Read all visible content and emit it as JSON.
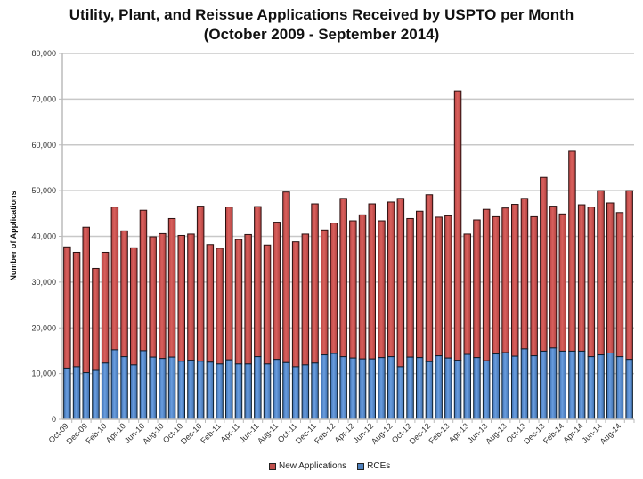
{
  "chart_data": {
    "type": "bar",
    "stacked": true,
    "title": "Utility, Plant, and Reissue Applications Received by USPTO per Month",
    "subtitle": "(October 2009  - September 2014)",
    "xlabel": "",
    "ylabel": "Number of Applications",
    "ylim": [
      0,
      80000
    ],
    "yticks": [
      0,
      10000,
      20000,
      30000,
      40000,
      50000,
      60000,
      70000,
      80000
    ],
    "ytick_labels": [
      "0",
      "10,000",
      "20,000",
      "30,000",
      "40,000",
      "50,000",
      "60,000",
      "70,000",
      "80,000"
    ],
    "grid": true,
    "legend_position": "bottom",
    "categories": [
      "Oct-09",
      "Nov-09",
      "Dec-09",
      "Jan-10",
      "Feb-10",
      "Mar-10",
      "Apr-10",
      "May-10",
      "Jun-10",
      "Jul-10",
      "Aug-10",
      "Sep-10",
      "Oct-10",
      "Nov-10",
      "Dec-10",
      "Jan-11",
      "Feb-11",
      "Mar-11",
      "Apr-11",
      "May-11",
      "Jun-11",
      "Jul-11",
      "Aug-11",
      "Sep-11",
      "Oct-11",
      "Nov-11",
      "Dec-11",
      "Jan-12",
      "Feb-12",
      "Mar-12",
      "Apr-12",
      "May-12",
      "Jun-12",
      "Jul-12",
      "Aug-12",
      "Sep-12",
      "Oct-12",
      "Nov-12",
      "Dec-12",
      "Jan-13",
      "Feb-13",
      "Mar-13",
      "Apr-13",
      "May-13",
      "Jun-13",
      "Jul-13",
      "Aug-13",
      "Sep-13",
      "Oct-13",
      "Nov-13",
      "Dec-13",
      "Jan-14",
      "Feb-14",
      "Mar-14",
      "Apr-14",
      "May-14",
      "Jun-14",
      "Jul-14",
      "Aug-14",
      "Sep-14"
    ],
    "shown_xtick_labels": [
      "Oct-09",
      "Dec-09",
      "Feb-10",
      "Apr-10",
      "Jun-10",
      "Aug-10",
      "Oct-10",
      "Dec-10",
      "Feb-11",
      "Apr-11",
      "Jun-11",
      "Aug-11",
      "Oct-11",
      "Dec-11",
      "Feb-12",
      "Apr-12",
      "Jun-12",
      "Aug-12",
      "Oct-12",
      "Dec-12",
      "Feb-13",
      "Apr-13",
      "Jun-13",
      "Aug-13",
      "Oct-13",
      "Dec-13",
      "Feb-14",
      "Apr-14",
      "Jun-14",
      "Aug-14"
    ],
    "series": [
      {
        "name": "RCEs",
        "color": "#4f81bd",
        "values": [
          11200,
          11500,
          10200,
          10700,
          12300,
          15200,
          13700,
          11900,
          15000,
          13600,
          13300,
          13600,
          12700,
          12900,
          12700,
          12500,
          12100,
          13000,
          12100,
          12100,
          13700,
          12100,
          13100,
          12400,
          11500,
          11900,
          12300,
          14100,
          14400,
          13700,
          13400,
          13200,
          13200,
          13500,
          13700,
          11500,
          13600,
          13500,
          12600,
          13900,
          13400,
          12900,
          14200,
          13500,
          12800,
          14300,
          14600,
          13800,
          15400,
          13900,
          14900,
          15600,
          14900,
          14900,
          14900,
          13700,
          14100,
          14500,
          13700,
          13100
        ]
      },
      {
        "name": "New Applications",
        "color": "#c0504d",
        "totals": [
          37700,
          36500,
          42000,
          33000,
          36500,
          46400,
          41200,
          37500,
          45700,
          39900,
          40600,
          43900,
          40200,
          40500,
          46600,
          38200,
          37400,
          46400,
          39300,
          40400,
          46500,
          38100,
          43100,
          49700,
          38800,
          40500,
          47100,
          41400,
          42900,
          48300,
          43400,
          44700,
          47100,
          43400,
          47500,
          48300,
          43900,
          45500,
          49100,
          44200,
          44500,
          71800,
          40500,
          43600,
          45900,
          44300,
          46200,
          47000,
          48300,
          44300,
          52900,
          46600,
          44900,
          58600,
          46900,
          46400,
          50000,
          47300,
          45200,
          50000
        ]
      }
    ]
  }
}
